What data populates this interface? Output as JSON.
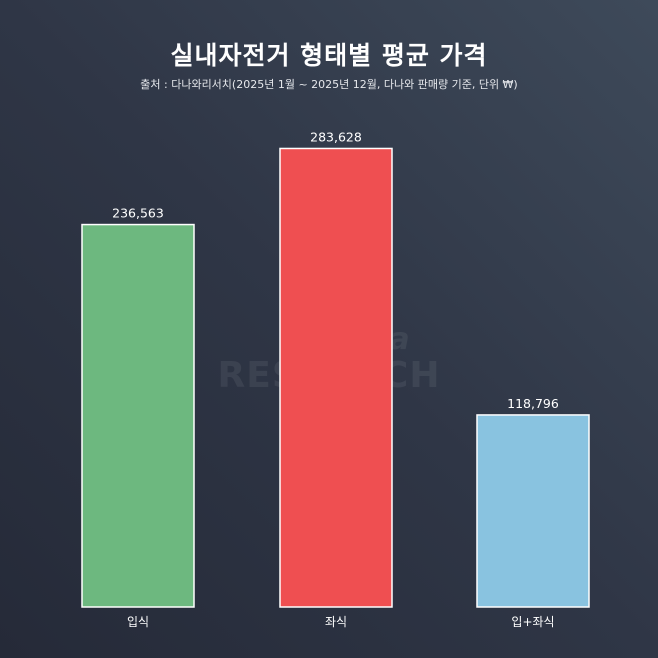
{
  "chart_data": {
    "type": "bar",
    "title": "실내자전거 형태별 평균 가격",
    "subtitle": "출처 : 다나와리서치(2025년 1월 ~ 2025년 12월, 다나와 판매량 기준, 단위 ₩)",
    "categories": [
      "입식",
      "좌식",
      "입+좌식"
    ],
    "values": [
      236563,
      283628,
      118796
    ],
    "value_labels": [
      "236,563",
      "283,628",
      "118,796"
    ],
    "colors": [
      "#6db87f",
      "#ef4f51",
      "#89c3e0"
    ],
    "ylim": [
      0,
      300000
    ],
    "grid": false,
    "legend": "none"
  },
  "watermark": {
    "line1": "danawa",
    "line2": "RESEARCH"
  }
}
